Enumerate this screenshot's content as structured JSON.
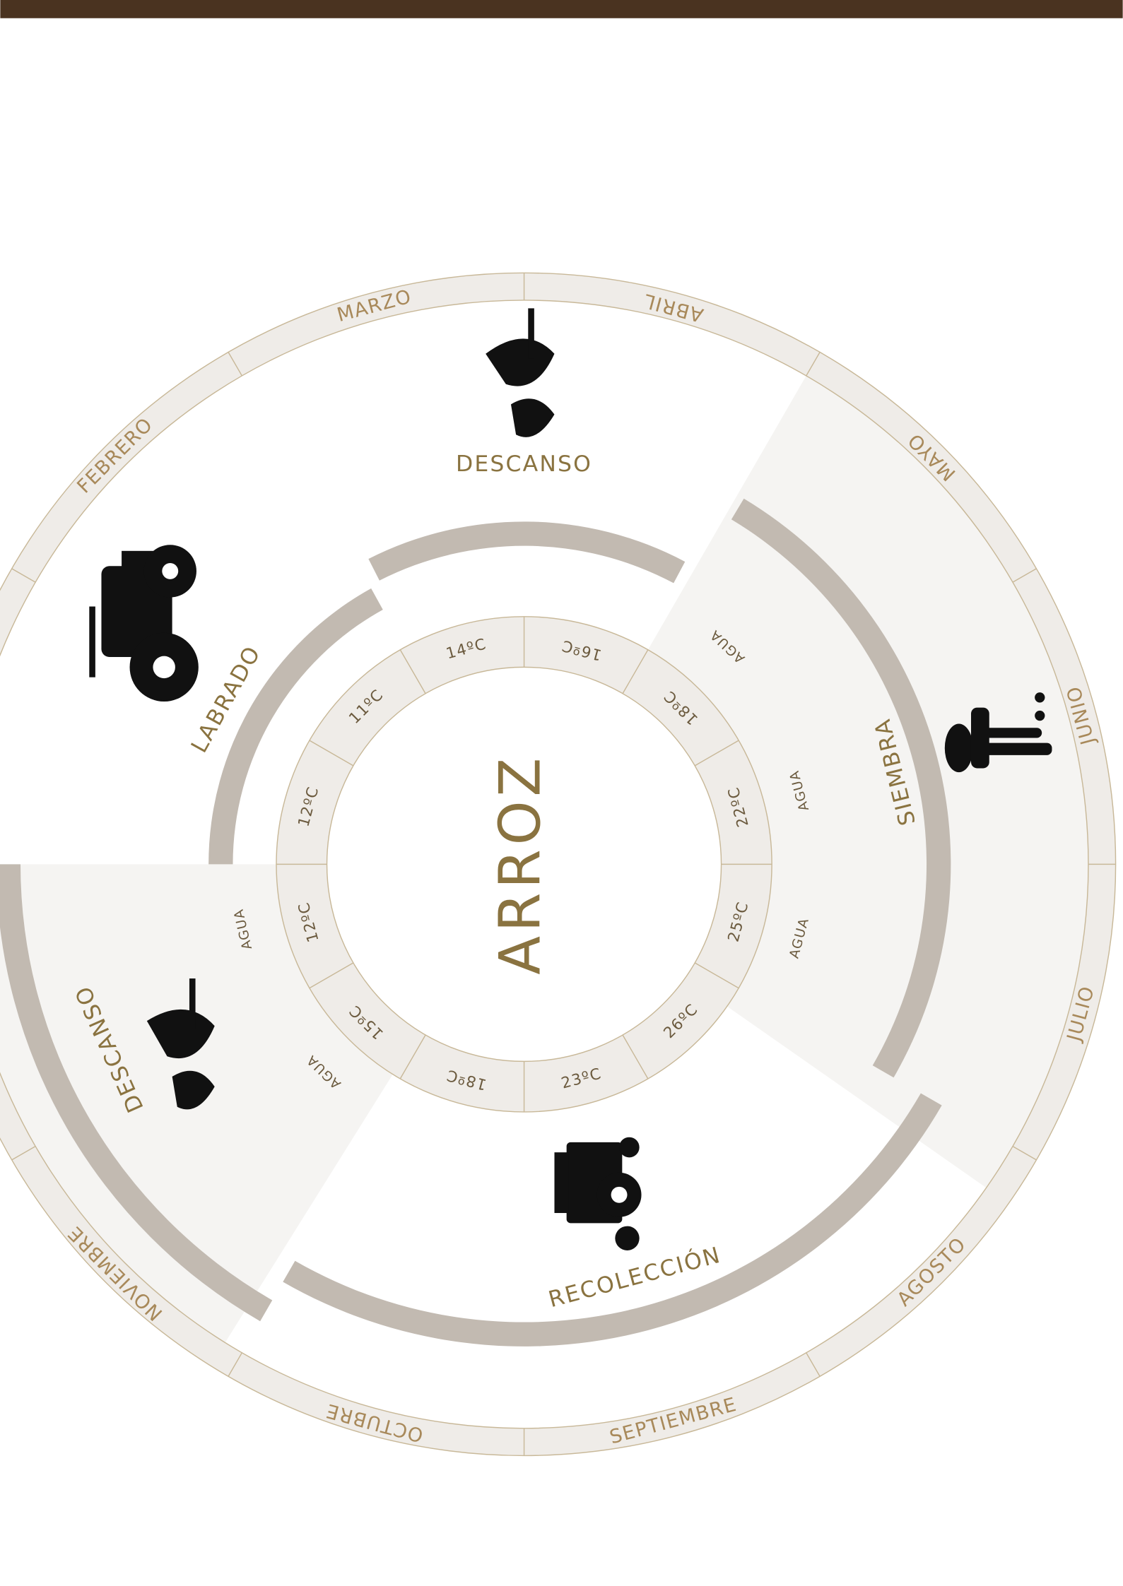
{
  "title": "ARROZ",
  "months": [
    "ABRIL",
    "MAYO",
    "JUNIO",
    "JULIO",
    "AGOSTO",
    "SEPTIEMBRE",
    "OCTUBRE",
    "NOVIEMBRE",
    null,
    null,
    "FEBRERO",
    "MARZO"
  ],
  "temperatures": [
    "16ºC",
    "18ºC",
    "22ºC",
    "25ºC",
    "26ºC",
    "23ºC",
    "18ºC",
    "15ºC",
    "12ºC",
    "12ºC",
    "11ºC",
    "14ºC"
  ],
  "phases": [
    {
      "label": "DESCANSO"
    },
    {
      "label": "SIEMBRA"
    },
    {
      "label": "RECOLECCIÓN"
    },
    {
      "label": "DESCANSO"
    },
    {
      "label": "LABRADO"
    }
  ],
  "water": [
    "AGUA",
    "AGUA",
    "AGUA",
    "AGUA",
    "AGUA"
  ]
}
